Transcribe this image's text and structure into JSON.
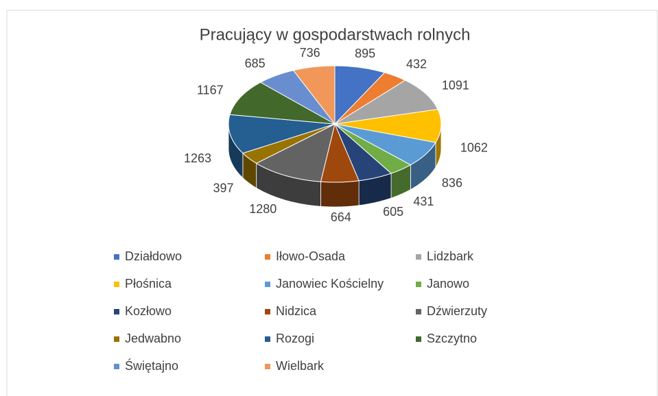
{
  "chart_data": {
    "type": "pie",
    "title": "Pracujący w gospodarstwach rolnych",
    "categories": [
      "Działdowo",
      "Iłowo-Osada",
      "Lidzbark",
      "Płośnica",
      "Janowiec Kościelny",
      "Janowo",
      "Kozłowo",
      "Nidzica",
      "Dźwierzuty",
      "Jedwabno",
      "Rozogi",
      "Szczytno",
      "Świętajno",
      "Wielbark"
    ],
    "values": [
      895,
      432,
      1091,
      1062,
      836,
      431,
      605,
      664,
      1280,
      397,
      1263,
      1167,
      685,
      736
    ],
    "colors": [
      "#4472c4",
      "#ed7d31",
      "#a5a5a5",
      "#ffc000",
      "#5b9bd5",
      "#70ad47",
      "#264478",
      "#9e480e",
      "#636363",
      "#997300",
      "#255e91",
      "#43682b",
      "#698ed0",
      "#f1975a"
    ],
    "legend": "bottom"
  }
}
